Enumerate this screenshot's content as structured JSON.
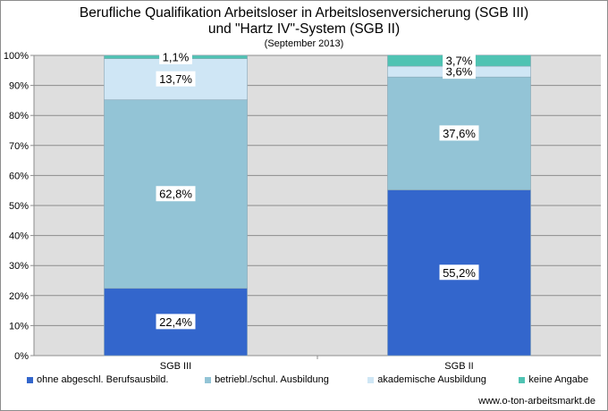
{
  "page": {
    "title_line1": "Berufliche Qualifikation Arbeitsloser in Arbeitslosenversicherung (SGB III)",
    "title_line2": "und \"Hartz IV\"-System (SGB II)",
    "subtitle": "(September 2013)",
    "source": "www.o-ton-arbeitsmarkt.de"
  },
  "chart_data": {
    "type": "bar",
    "stacked": true,
    "categories": [
      "SGB III",
      "SGB II"
    ],
    "ylim": [
      0,
      100
    ],
    "yticks": [
      "0%",
      "10%",
      "20%",
      "30%",
      "40%",
      "50%",
      "60%",
      "70%",
      "80%",
      "90%",
      "100%"
    ],
    "grid": true,
    "legend_position": "bottom",
    "series": [
      {
        "name": "ohne abgeschl. Berufsausbild.",
        "values": [
          22.4,
          55.2
        ],
        "labels": [
          "22,4%",
          "55,2%"
        ],
        "color": "#3366cc"
      },
      {
        "name": "betriebl./schul. Ausbildung",
        "values": [
          62.8,
          37.6
        ],
        "labels": [
          "62,8%",
          "37,6%"
        ],
        "color": "#93c4d6"
      },
      {
        "name": "akademische Ausbildung",
        "values": [
          13.7,
          3.6
        ],
        "labels": [
          "13,7%",
          "3,6%"
        ],
        "color": "#cfe6f5"
      },
      {
        "name": "keine Angabe",
        "values": [
          1.1,
          3.7
        ],
        "labels": [
          "1,1%",
          "3,7%"
        ],
        "color": "#4fc3b3"
      }
    ]
  }
}
